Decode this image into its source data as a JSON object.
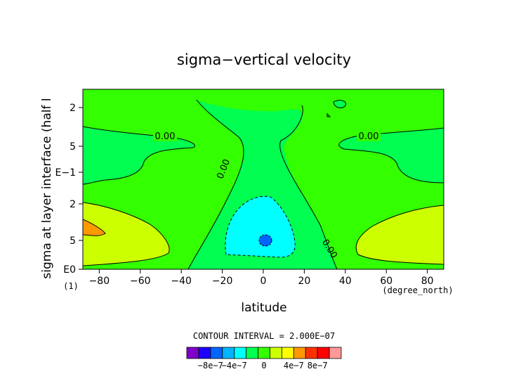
{
  "chart_data": {
    "type": "heatmap",
    "title": "sigma−vertical velocity",
    "xlabel": "latitude",
    "ylabel": "sigma at layer interface (half l",
    "x_unit": "(degree_north)",
    "y_ticks": [
      "2",
      "5",
      "E−1",
      "2",
      "5",
      "E0"
    ],
    "y_extra_label": "(1)",
    "x_ticks": [
      "−80",
      "−60",
      "−40",
      "−20",
      "0",
      "20",
      "40",
      "60",
      "80"
    ],
    "x_tick_values": [
      -80,
      -60,
      -40,
      -20,
      0,
      20,
      40,
      60,
      80
    ],
    "xlim": [
      -88,
      88
    ],
    "contour_labels": [
      "0.00",
      "0.00",
      "0.00",
      "0.00"
    ],
    "contour_interval_text": "CONTOUR INTERVAL = 2.000E−07",
    "colorbar": {
      "labels": [
        "−8e−7",
        "−4e−7",
        "0",
        "4e−7",
        "8e−7"
      ],
      "colors": [
        "#7f00c8",
        "#1e00ff",
        "#0064ff",
        "#00b4ff",
        "#00ffff",
        "#00ff50",
        "#33ff00",
        "#ccff00",
        "#ffff00",
        "#ff9900",
        "#ff3000",
        "#ff0000",
        "#ff9999"
      ]
    },
    "region_colors": {
      "neg_strong": "#0064ff",
      "neg": "#00ffff",
      "zero": "#33ff00",
      "pos": "#ccff00",
      "pos_strong": "#ff9900"
    }
  }
}
